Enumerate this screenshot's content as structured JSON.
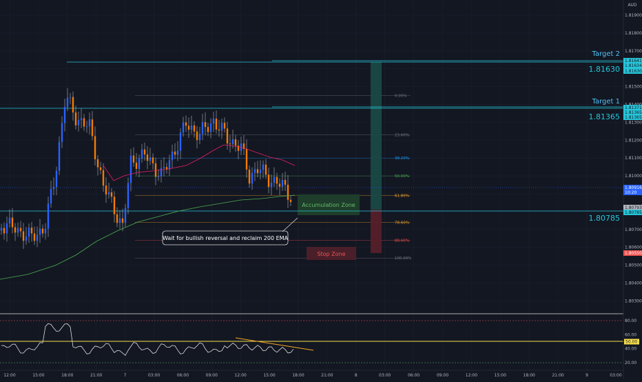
{
  "currency": "AUD",
  "price_labels": [
    "1.81900",
    "1.81800",
    "1.81700",
    "1.81600",
    "1.81500",
    "1.81400",
    "1.81300",
    "1.81200",
    "1.81100",
    "1.81000",
    "1.80900",
    "1.80800",
    "1.80700",
    "1.80600",
    "1.80500",
    "1.80400",
    "1.80300"
  ],
  "time_labels": [
    "12:00",
    "15:00",
    "18:00",
    "21:00",
    "7",
    "03:00",
    "06:00",
    "09:00",
    "12:00",
    "15:00",
    "18:00",
    "21:00",
    "8",
    "03:00",
    "06:00",
    "09:00",
    "12:00",
    "15:00",
    "18:00",
    "21:00",
    "9",
    "03:00"
  ],
  "tags": {
    "target2_a": "1.81641",
    "target2_b": "1.81634",
    "target2_c": "1.81630",
    "target1_a": "1.81371",
    "target1_b": "1.81365",
    "target1_c": "1.81365",
    "last_price": "1.80916",
    "countdown": "10:20",
    "acc_a": "1.80793",
    "acc_b": "1.80785",
    "stop": "1.80550"
  },
  "levels": {
    "target2_title": "Target 2",
    "target2_value": "1.81630",
    "target1_title": "Target 1",
    "target1_value": "1.81365",
    "entry_value": "1.80785"
  },
  "zones": {
    "accumulation": "Accumulation Zone",
    "stop": "Stop Zone"
  },
  "callout": "Wait for bullish reversal and reclaim 200 EMA",
  "fib_labels": [
    "0.00%",
    "23.60%",
    "38.20%",
    "50.00%",
    "61.80%",
    "78.60%",
    "88.60%",
    "100.00%"
  ],
  "rsi_labels": [
    "80.00",
    "60.00",
    "50.00",
    "40.00",
    "20.00"
  ],
  "colors": {
    "background": "#131722",
    "bull": "#2962ff",
    "bear": "#f57c00",
    "ema50": "#e91e63",
    "ema200": "#4caf50",
    "level": "#26c6da",
    "rsi": "#e0e0e0",
    "rsi_trend": "#f9a825"
  },
  "chart_data": {
    "type": "candlestick",
    "currency": "AUD",
    "y_range": [
      1.8025,
      1.8195
    ],
    "y_ticks": [
      1.819,
      1.818,
      1.817,
      1.816,
      1.815,
      1.814,
      1.813,
      1.812,
      1.811,
      1.81,
      1.809,
      1.808,
      1.807,
      1.806,
      1.805,
      1.804,
      1.803
    ],
    "x_ticks": [
      "12:00",
      "15:00",
      "18:00",
      "21:00",
      "7",
      "03:00",
      "06:00",
      "09:00",
      "12:00",
      "15:00",
      "18:00",
      "21:00",
      "8",
      "03:00",
      "06:00",
      "09:00",
      "12:00",
      "15:00",
      "18:00",
      "21:00",
      "9",
      "03:00"
    ],
    "last_price": 1.80916,
    "levels": [
      {
        "name": "Target 2",
        "value": 1.8163
      },
      {
        "name": "Target 1",
        "value": 1.81365
      },
      {
        "value": 1.80785
      }
    ],
    "fibonacci": [
      {
        "level": "0.00%",
        "value": 1.8145
      },
      {
        "level": "23.60%",
        "value": 1.8123
      },
      {
        "level": "38.20%",
        "value": 1.811
      },
      {
        "level": "50.00%",
        "value": 1.81
      },
      {
        "level": "61.80%",
        "value": 1.8089
      },
      {
        "level": "78.60%",
        "value": 1.8074
      },
      {
        "level": "88.60%",
        "value": 1.8064
      },
      {
        "level": "100.00%",
        "value": 1.8054
      }
    ],
    "zones": [
      {
        "name": "Accumulation Zone",
        "from": 1.808,
        "to": 1.809
      },
      {
        "name": "Stop Zone",
        "from": 1.8055,
        "to": 1.806
      }
    ],
    "rsi_levels": [
      80,
      60,
      50,
      40,
      20
    ],
    "rsi_range": [
      15,
      90
    ]
  }
}
